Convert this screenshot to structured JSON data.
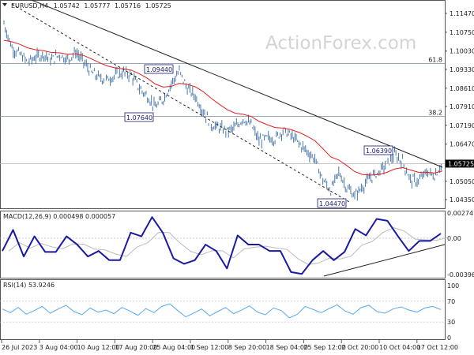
{
  "chart_data": {
    "type": "candlestick",
    "header": {
      "symbol": "EURUSD,H4",
      "open": "1.05742",
      "high": "1.05777",
      "low": "1.05716",
      "close": "1.05725"
    },
    "watermark": "ActionForex.com",
    "x_ticks": [
      "26 Jul 2023",
      "3 Aug 04:00",
      "10 Aug 12:00",
      "17 Aug 20:00",
      "25 Aug 04:00",
      "1 Sep 12:00",
      "8 Sep 20:00",
      "18 Sep 04:00",
      "25 Sep 12:00",
      "2 Oct 20:00",
      "10 Oct 04:00",
      "17 Oct 12:00"
    ],
    "price_axis": {
      "ticks": [
        "1.11470",
        "1.10750",
        "1.10030",
        "1.09330",
        "1.08610",
        "1.07910",
        "1.07190",
        "1.06470",
        "1.05050",
        "1.04350"
      ],
      "range": [
        1.0435,
        1.1147
      ],
      "current": "1.05725"
    },
    "close": [
      1.1108,
      1.1016,
      1.099,
      1.096,
      1.098,
      1.099,
      1.097,
      1.099,
      1.097,
      1.1,
      1.096,
      1.092,
      1.09,
      1.0895,
      1.091,
      1.092,
      1.091,
      1.086,
      1.083,
      1.0788,
      1.082,
      1.088,
      1.0925,
      1.086,
      1.083,
      1.0773,
      1.072,
      1.071,
      1.0697,
      1.071,
      1.0745,
      1.072,
      1.066,
      1.067,
      1.0667,
      1.07,
      1.068,
      1.065,
      1.062,
      1.059,
      1.051,
      1.047,
      1.054,
      1.048,
      1.045,
      1.0485,
      1.052,
      1.054,
      1.057,
      1.0605,
      1.058,
      1.051,
      1.0505,
      1.054,
      1.0525,
      1.0575
    ],
    "moving_average_color": "#e02020",
    "bar_color": "#4a78a8",
    "fibonacci": [
      {
        "label": "61.8",
        "price": 1.0955
      },
      {
        "label": "38.2",
        "price": 1.0753
      }
    ],
    "annotations": [
      {
        "text": "1.09440",
        "price": 1.0944
      },
      {
        "text": "1.07640",
        "price": 1.0764
      },
      {
        "text": "1.06390",
        "price": 1.0639
      },
      {
        "text": "1.04470",
        "price": 1.0447
      }
    ],
    "macd": {
      "title": "MACD(12,26,9) 0.000498 0.000057",
      "ticks": [
        "0.002747",
        "0.00",
        "-0.003966"
      ],
      "range": [
        -0.003966,
        0.002747
      ],
      "values": [
        -0.0014,
        0.0009,
        -0.002,
        0.0002,
        -0.0015,
        -0.0015,
        0.0002,
        -0.0007,
        -0.002,
        -0.0014,
        -0.0024,
        -0.0024,
        0.0006,
        0.0002,
        0.0023,
        0.0006,
        -0.0022,
        -0.0028,
        -0.0024,
        -0.0007,
        -0.0014,
        -0.0033,
        0.0003,
        -0.0007,
        -0.0007,
        -0.0014,
        -0.0014,
        -0.0037,
        -0.0039,
        -0.0024,
        -0.0014,
        -0.0024,
        -0.0015,
        0.001,
        0.0003,
        0.0021,
        0.0019,
        0.0002,
        -0.0014,
        -0.0003,
        -0.0003,
        0.0005
      ],
      "color": "#1a1aa0"
    },
    "rsi": {
      "title": "RSI(14) 53.9246",
      "ticks": [
        "100",
        "70",
        "30",
        "0"
      ],
      "levels": [
        70,
        30
      ],
      "values": [
        55,
        48,
        58,
        45,
        52,
        60,
        47,
        55,
        62,
        50,
        44,
        57,
        49,
        53,
        46,
        58,
        51,
        43,
        56,
        48,
        60,
        65,
        52,
        40,
        47,
        55,
        42,
        50,
        58,
        46,
        53,
        61,
        49,
        44,
        57,
        52,
        38,
        45,
        60,
        54,
        48,
        56,
        63,
        51,
        45,
        58,
        62,
        50,
        47,
        55,
        59,
        53,
        49,
        57,
        60,
        54
      ],
      "color": "#5aa8f0"
    }
  }
}
